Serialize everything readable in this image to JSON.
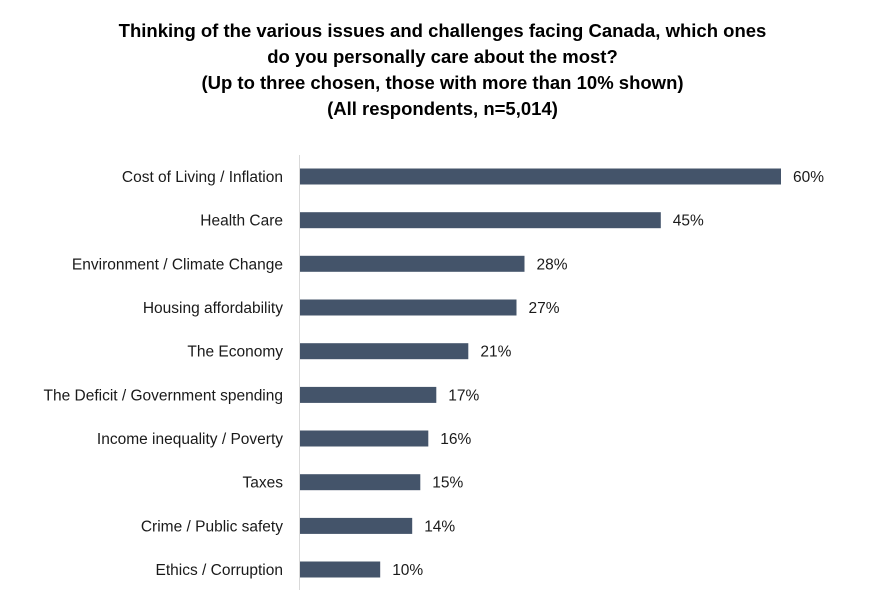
{
  "chart_data": {
    "type": "bar",
    "orientation": "horizontal",
    "title": [
      "Thinking of the various issues and challenges facing Canada, which ones",
      "do you personally care about the most?",
      "(Up to three chosen, those with more than 10% shown)",
      "(All respondents, n=5,014)"
    ],
    "categories": [
      "Cost of Living / Inflation",
      "Health Care",
      "Environment / Climate Change",
      "Housing affordability",
      "The Economy",
      "The Deficit / Government spending",
      "Income inequality / Poverty",
      "Taxes",
      "Crime / Public safety",
      "Ethics / Corruption"
    ],
    "values": [
      60,
      45,
      28,
      27,
      21,
      17,
      16,
      15,
      14,
      10
    ],
    "value_labels": [
      "60%",
      "45%",
      "28%",
      "27%",
      "21%",
      "17%",
      "16%",
      "15%",
      "14%",
      "10%"
    ],
    "xlim": [
      0,
      60
    ],
    "xlabel": "",
    "ylabel": "",
    "grid": false,
    "bar_color": "#44546a",
    "axis_color": "#d9d9d9"
  }
}
